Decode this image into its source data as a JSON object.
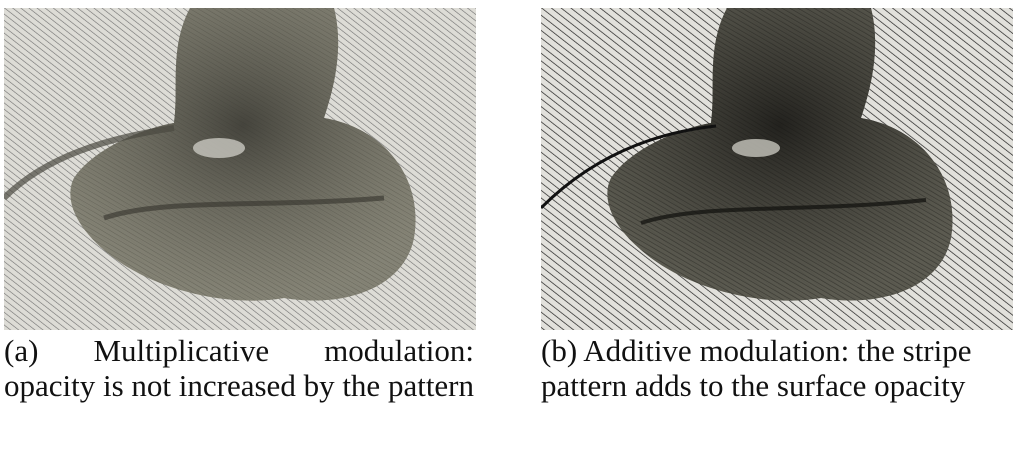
{
  "figure": {
    "subfigures": [
      {
        "label": "(a)",
        "caption": "Multiplicative modulation: opacity is not increased by the pattern",
        "image": {
          "stripe_color": "#6f6f6f",
          "background": "#dddcd6",
          "surface": "#5b5a4f"
        }
      },
      {
        "label": "(b)",
        "caption": "Additive modulation: the stripe pattern adds to the surface opacity",
        "image": {
          "stripe_color": "#1f1f1f",
          "background": "#e2e1dc",
          "surface": "#2b2a25"
        }
      }
    ]
  }
}
